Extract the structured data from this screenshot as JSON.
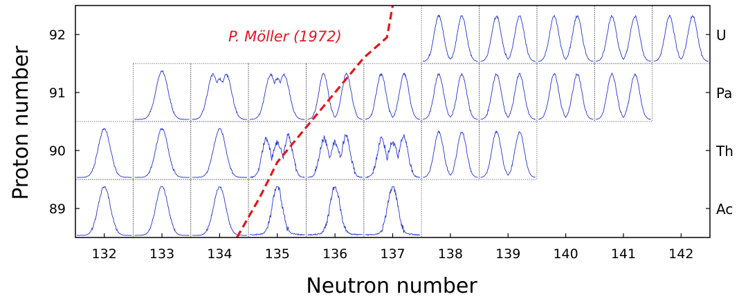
{
  "chart_data": {
    "type": "line",
    "xlabel": "Neutron number",
    "ylabel": "Proton number",
    "x_ticks": [
      132,
      133,
      134,
      135,
      136,
      137,
      138,
      139,
      140,
      141,
      142
    ],
    "y_ticks": [
      89,
      90,
      91,
      92
    ],
    "xlim": [
      131.5,
      142.5
    ],
    "ylim": [
      88.5,
      92.5
    ],
    "element_labels": [
      {
        "z": 92,
        "label": "U"
      },
      {
        "z": 91,
        "label": "Pa"
      },
      {
        "z": 90,
        "label": "Th"
      },
      {
        "z": 89,
        "label": "Ac"
      }
    ],
    "panels": [
      {
        "z": 92,
        "n": 138,
        "shape": "double"
      },
      {
        "z": 92,
        "n": 139,
        "shape": "double"
      },
      {
        "z": 92,
        "n": 140,
        "shape": "double"
      },
      {
        "z": 92,
        "n": 141,
        "shape": "double"
      },
      {
        "z": 92,
        "n": 142,
        "shape": "double"
      },
      {
        "z": 91,
        "n": 133,
        "shape": "single"
      },
      {
        "z": 91,
        "n": 134,
        "shape": "flat"
      },
      {
        "z": 91,
        "n": 135,
        "shape": "flat"
      },
      {
        "z": 91,
        "n": 136,
        "shape": "double"
      },
      {
        "z": 91,
        "n": 137,
        "shape": "double"
      },
      {
        "z": 91,
        "n": 138,
        "shape": "double"
      },
      {
        "z": 91,
        "n": 139,
        "shape": "double"
      },
      {
        "z": 91,
        "n": 140,
        "shape": "double"
      },
      {
        "z": 91,
        "n": 141,
        "shape": "double"
      },
      {
        "z": 90,
        "n": 132,
        "shape": "single"
      },
      {
        "z": 90,
        "n": 133,
        "shape": "single"
      },
      {
        "z": 90,
        "n": 134,
        "shape": "single"
      },
      {
        "z": 90,
        "n": 135,
        "shape": "triple"
      },
      {
        "z": 90,
        "n": 136,
        "shape": "triple"
      },
      {
        "z": 90,
        "n": 137,
        "shape": "triple"
      },
      {
        "z": 90,
        "n": 138,
        "shape": "double"
      },
      {
        "z": 90,
        "n": 139,
        "shape": "double"
      },
      {
        "z": 89,
        "n": 132,
        "shape": "single"
      },
      {
        "z": 89,
        "n": 133,
        "shape": "single"
      },
      {
        "z": 89,
        "n": 134,
        "shape": "single"
      },
      {
        "z": 89,
        "n": 135,
        "shape": "sharp"
      },
      {
        "z": 89,
        "n": 136,
        "shape": "sharp"
      },
      {
        "z": 89,
        "n": 137,
        "shape": "sharp"
      }
    ],
    "annotation": {
      "text": "P. Möller (1972)",
      "color": "#e8141c",
      "points": [
        [
          134.3,
          88.5
        ],
        [
          134.7,
          89.2
        ],
        [
          135.0,
          89.8
        ],
        [
          135.5,
          90.4
        ],
        [
          136.0,
          91.0
        ],
        [
          136.5,
          91.6
        ],
        [
          136.9,
          91.95
        ],
        [
          137.0,
          92.5
        ]
      ]
    },
    "panel_color": "#2233dd",
    "grid": false
  }
}
